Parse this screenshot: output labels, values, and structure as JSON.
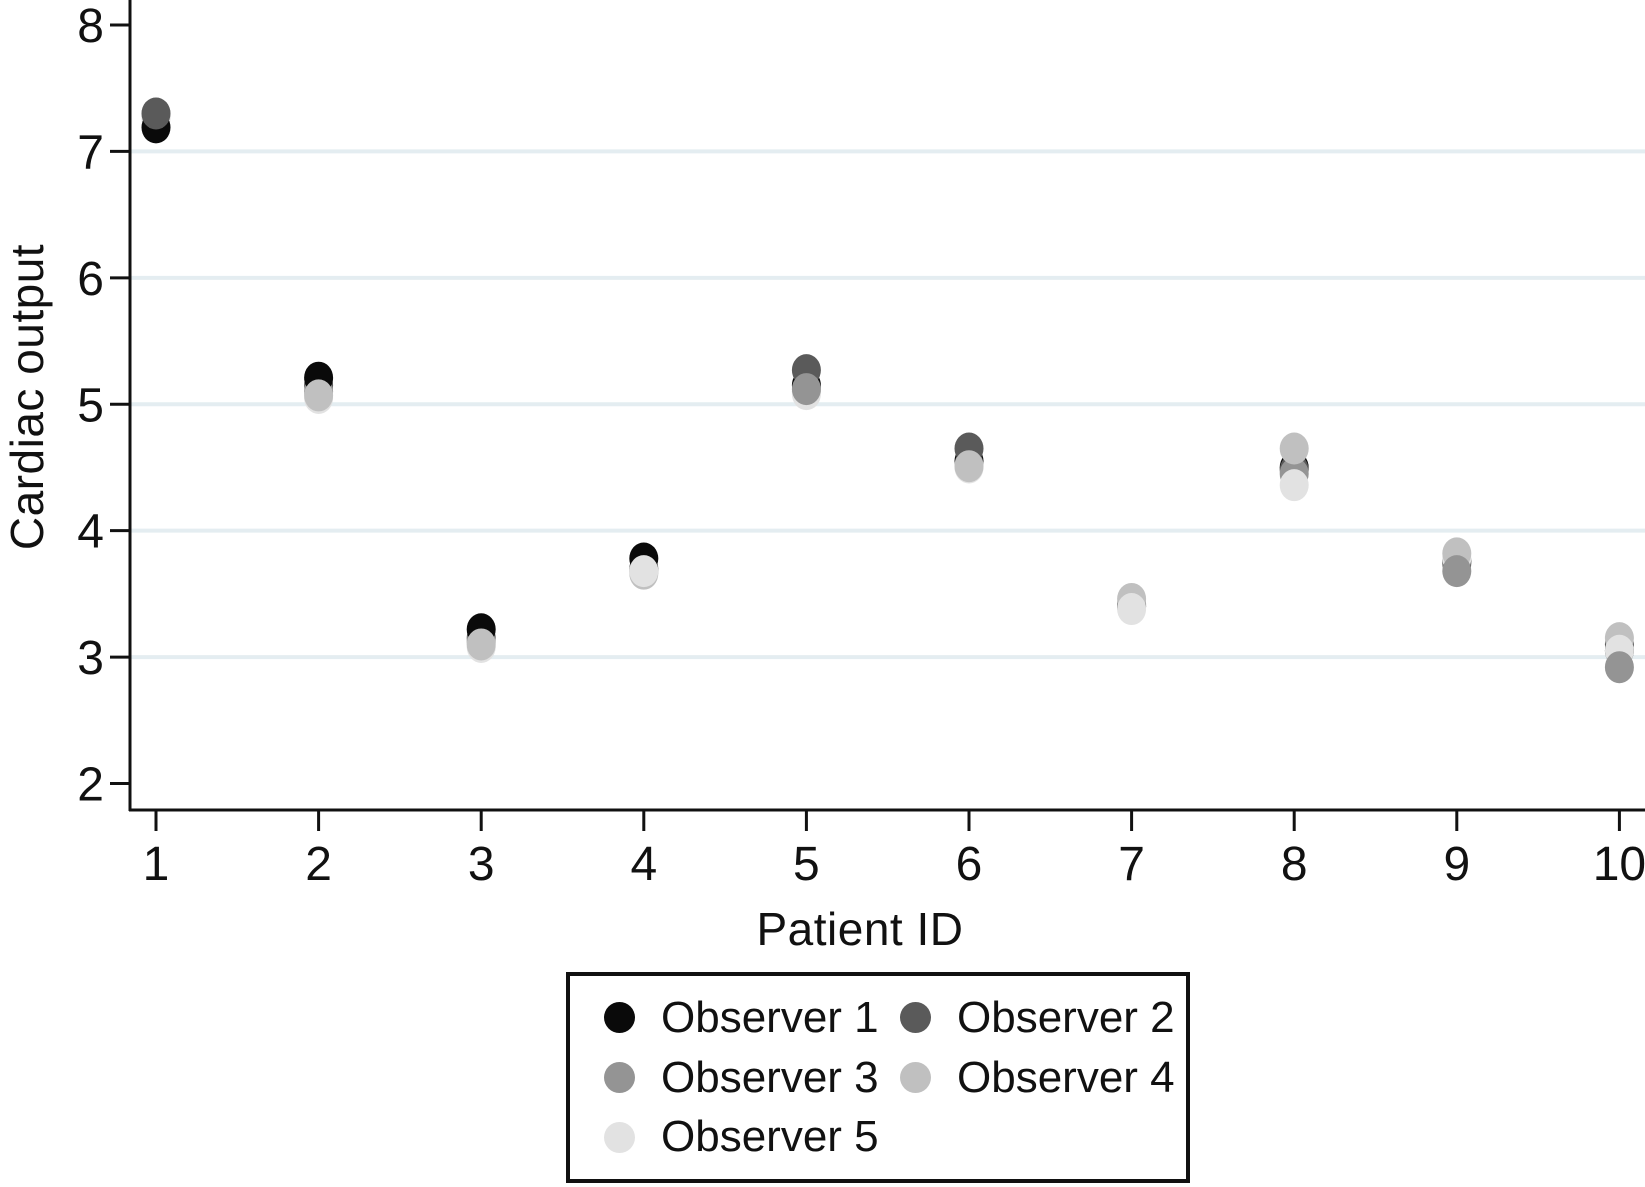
{
  "figure": {
    "background_color": "#ffffff",
    "axis_color": "#111111",
    "gridline_color": "#e4edf1",
    "text_color": "#111111",
    "legend_border_color": "#111111"
  },
  "chart_data": {
    "type": "scatter",
    "title": "",
    "xlabel": "Patient ID",
    "ylabel": "Cardiac output",
    "x": [
      1,
      2,
      3,
      4,
      5,
      6,
      7,
      8,
      9,
      10
    ],
    "x_tick_labels": [
      "1",
      "2",
      "3",
      "4",
      "5",
      "6",
      "7",
      "8",
      "9",
      "10"
    ],
    "y_ticks": [
      2,
      3,
      4,
      5,
      6,
      7,
      8
    ],
    "y_tick_labels": [
      "2",
      "3",
      "4",
      "5",
      "6",
      "7",
      "8"
    ],
    "ylim": [
      1.8,
      8.2
    ],
    "gridline_values": [
      3,
      4,
      5,
      6,
      7
    ],
    "grid": "horizontal light gridlines at whole units 3-7",
    "legend_position": "boxed, centered below x-axis title, 2 columns",
    "series": [
      {
        "name": "Observer 1",
        "color": "#0a0a0a",
        "values": [
          7.19,
          5.21,
          3.22,
          3.78,
          5.15,
          4.55,
          3.4,
          4.5,
          3.76,
          3.05
        ]
      },
      {
        "name": "Observer 2",
        "color": "#5a5a5a",
        "values": [
          7.3,
          5.15,
          3.15,
          3.7,
          5.27,
          4.65,
          3.41,
          4.48,
          3.74,
          3.1
        ]
      },
      {
        "name": "Observer 3",
        "color": "#949494",
        "values": [
          7.28,
          5.1,
          3.12,
          3.68,
          5.12,
          4.52,
          3.42,
          4.45,
          3.68,
          2.92
        ]
      },
      {
        "name": "Observer 4",
        "color": "#c0c0c0",
        "values": [
          7.3,
          5.07,
          3.1,
          3.66,
          5.1,
          4.51,
          3.46,
          4.65,
          3.82,
          3.15
        ]
      },
      {
        "name": "Observer 5",
        "color": "#e2e2e2",
        "values": [
          7.26,
          5.05,
          3.08,
          3.68,
          5.08,
          4.5,
          3.38,
          4.36,
          3.78,
          3.05
        ]
      }
    ],
    "draw_order_by_patient": [
      [
        3,
        4,
        5,
        1,
        2
      ],
      [
        2,
        3,
        5,
        1,
        4
      ],
      [
        2,
        3,
        5,
        1,
        4
      ],
      [
        2,
        3,
        4,
        1,
        5
      ],
      [
        1,
        4,
        5,
        2,
        3
      ],
      [
        1,
        3,
        5,
        2,
        4
      ],
      [
        1,
        2,
        3,
        4,
        5
      ],
      [
        1,
        2,
        3,
        4,
        5
      ],
      [
        1,
        2,
        5,
        4,
        3
      ],
      [
        1,
        2,
        4,
        5,
        3
      ]
    ]
  }
}
